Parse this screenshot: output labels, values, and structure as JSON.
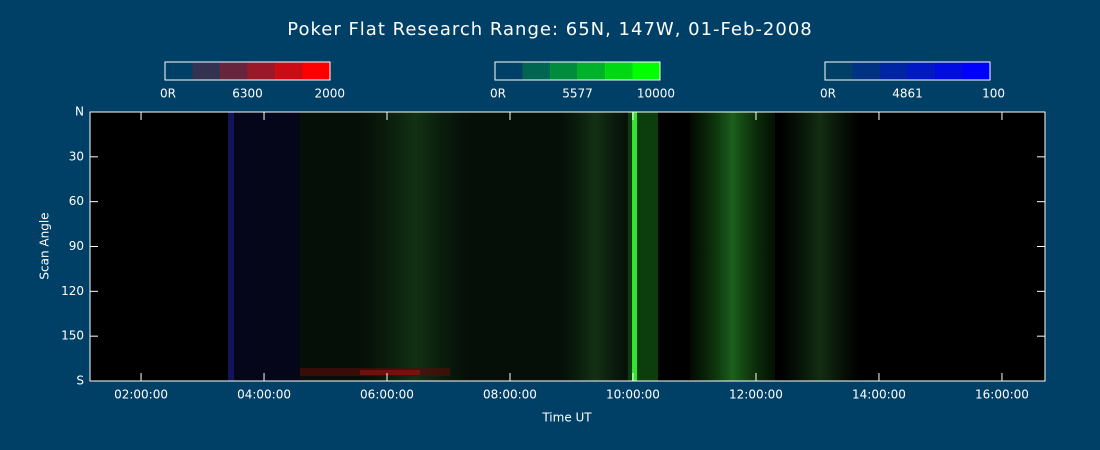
{
  "chart_data": {
    "type": "keogram",
    "title": "Poker Flat Research Range: 65N, 147W, 01-Feb-2008",
    "xlabel": "Time UT",
    "ylabel": "Scan Angle",
    "xlim": [
      1.17,
      16.7
    ],
    "xticks": [
      {
        "value": 2,
        "label": "02:00:00"
      },
      {
        "value": 4,
        "label": "04:00:00"
      },
      {
        "value": 6,
        "label": "06:00:00"
      },
      {
        "value": 8,
        "label": "08:00:00"
      },
      {
        "value": 10,
        "label": "10:00:00"
      },
      {
        "value": 12,
        "label": "12:00:00"
      },
      {
        "value": 14,
        "label": "14:00:00"
      },
      {
        "value": 16,
        "label": "16:00:00"
      }
    ],
    "ylim": [
      0,
      180
    ],
    "yticks": [
      {
        "value": 0,
        "label": "N"
      },
      30,
      60,
      90,
      120,
      150,
      {
        "value": 180,
        "label": "S"
      }
    ],
    "colorbars": [
      {
        "name": "6300",
        "color": "#ff0000",
        "ticks": [
          {
            "value": 0,
            "label": "0R"
          },
          2000
        ]
      },
      {
        "name": "5577",
        "color": "#00ff00",
        "ticks": [
          {
            "value": 0,
            "label": "0R"
          },
          10000
        ]
      },
      {
        "name": "4861",
        "color": "#0000ff",
        "ticks": [
          {
            "value": 0,
            "label": "0R"
          },
          100
        ]
      }
    ]
  }
}
